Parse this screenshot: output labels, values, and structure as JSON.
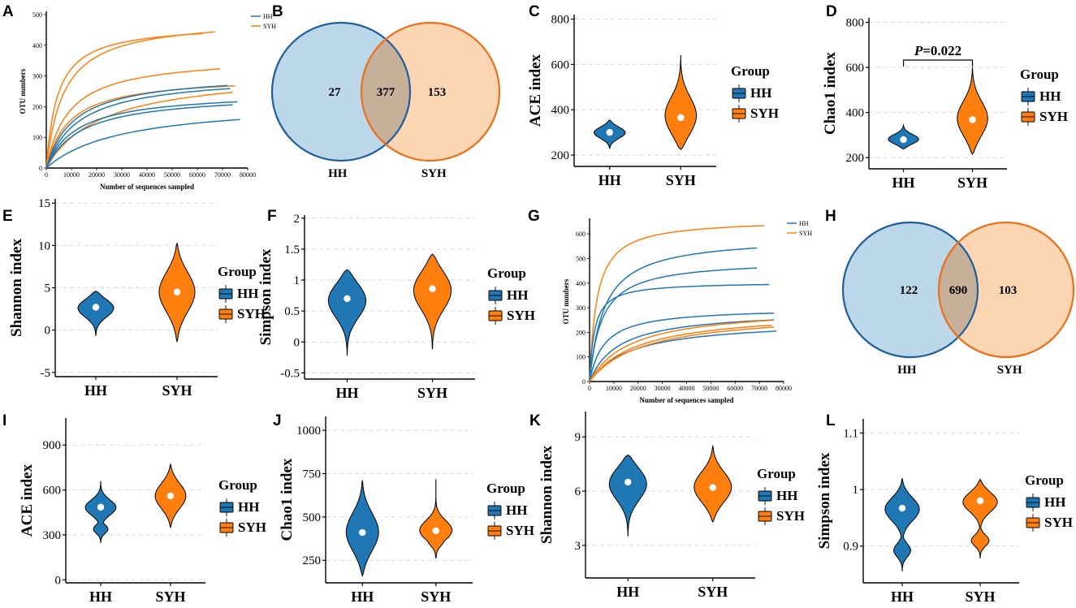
{
  "colors": {
    "HH": "#1f77b4",
    "SYH": "#ff7f0e",
    "venn_HH_fill": "#bcd6ea",
    "venn_SYH_fill": "#fcd5b2",
    "venn_overlap": "#c6b09a",
    "venn_HH_stroke": "#1f5f99",
    "venn_SYH_stroke": "#ec7018"
  },
  "chart_data": [
    {
      "panel": "A",
      "type": "line",
      "xlabel": "Number of sequences sampled",
      "ylabel": "OTU numbers",
      "xlim": [
        0,
        80000
      ],
      "ylim": [
        0,
        500
      ],
      "xticks": [
        "0",
        "10000",
        "20000",
        "30000",
        "40000",
        "50000",
        "60000",
        "70000",
        "80000"
      ],
      "yticks": [
        "0",
        "100",
        "200",
        "300",
        "400",
        "500"
      ],
      "legend": [
        "HH",
        "SYH"
      ],
      "series": [
        {
          "group": "SYH",
          "asym": 470,
          "k": 4500,
          "xmax": 62000
        },
        {
          "group": "SYH",
          "asym": 490,
          "k": 7000,
          "xmax": 67000
        },
        {
          "group": "SYH",
          "asym": 365,
          "k": 9000,
          "xmax": 69000
        },
        {
          "group": "SYH",
          "asym": 300,
          "k": 9000,
          "xmax": 75000
        },
        {
          "group": "SYH",
          "asym": 320,
          "k": 22000,
          "xmax": 74000
        },
        {
          "group": "HH",
          "asym": 310,
          "k": 11000,
          "xmax": 72000
        },
        {
          "group": "HH",
          "asym": 305,
          "k": 13000,
          "xmax": 73000
        },
        {
          "group": "HH",
          "asym": 250,
          "k": 12000,
          "xmax": 76000
        },
        {
          "group": "HH",
          "asym": 245,
          "k": 14000,
          "xmax": 74000
        },
        {
          "group": "HH",
          "asym": 220,
          "k": 30000,
          "xmax": 77000
        }
      ]
    },
    {
      "panel": "B",
      "type": "venn",
      "sets": [
        "HH",
        "SYH"
      ],
      "only_HH": "27",
      "shared": "377",
      "only_SYH": "153"
    },
    {
      "panel": "C",
      "type": "violin",
      "ylabel": "ACE index",
      "ylim": [
        150,
        820
      ],
      "yticks": [
        200,
        400,
        600,
        800
      ],
      "categories": [
        "HH",
        "SYH"
      ],
      "series": [
        {
          "name": "HH",
          "median": 300,
          "min": 230,
          "max": 355
        },
        {
          "name": "SYH",
          "median": 365,
          "min": 225,
          "max": 640
        }
      ],
      "legend_title": "Group",
      "legend": [
        "HH",
        "SYH"
      ]
    },
    {
      "panel": "D",
      "type": "violin",
      "ylabel": "Chao1 index",
      "ylim": [
        150,
        820
      ],
      "yticks": [
        200,
        400,
        600,
        800
      ],
      "categories": [
        "HH",
        "SYH"
      ],
      "series": [
        {
          "name": "HH",
          "median": 280,
          "min": 238,
          "max": 345
        },
        {
          "name": "SYH",
          "median": 368,
          "min": 215,
          "max": 600
        }
      ],
      "annotation": "P=0.022",
      "legend_title": "Group",
      "legend": [
        "HH",
        "SYH"
      ]
    },
    {
      "panel": "E",
      "type": "violin",
      "ylabel": "Shannon index",
      "ylim": [
        -5.5,
        15.5
      ],
      "yticks": [
        -5,
        0,
        5,
        10,
        15
      ],
      "categories": [
        "HH",
        "SYH"
      ],
      "series": [
        {
          "name": "HH",
          "median": 2.7,
          "min": -0.7,
          "max": 4.6
        },
        {
          "name": "SYH",
          "median": 4.5,
          "min": -1.4,
          "max": 10.3
        }
      ],
      "legend_title": "Group",
      "legend": [
        "HH",
        "SYH"
      ]
    },
    {
      "panel": "F",
      "type": "violin",
      "ylabel": "Simpson index",
      "ylim": [
        -0.6,
        2.05
      ],
      "yticks": [
        -0.5,
        0,
        0.5,
        1,
        1.5,
        2
      ],
      "categories": [
        "HH",
        "SYH"
      ],
      "series": [
        {
          "name": "HH",
          "median": 0.7,
          "min": -0.22,
          "max": 1.17
        },
        {
          "name": "SYH",
          "median": 0.86,
          "min": -0.12,
          "max": 1.42
        }
      ],
      "legend_title": "Group",
      "legend": [
        "HH",
        "SYH"
      ]
    },
    {
      "panel": "G",
      "type": "line",
      "xlabel": "Number of sequences sampled",
      "ylabel": "OTU numbers",
      "xlim": [
        0,
        80000
      ],
      "ylim": [
        0,
        650
      ],
      "xticks": [
        "0",
        "10000",
        "20000",
        "30000",
        "40000",
        "50000",
        "60000",
        "70000",
        "80000"
      ],
      "yticks": [
        "0",
        "100",
        "200",
        "300",
        "400",
        "500",
        "600"
      ],
      "legend": [
        "HH",
        "SYH"
      ],
      "series": [
        {
          "group": "SYH",
          "asym": 660,
          "k": 3000,
          "xmax": 72000
        },
        {
          "group": "HH",
          "asym": 590,
          "k": 6000,
          "xmax": 69000
        },
        {
          "group": "HH",
          "asym": 495,
          "k": 5000,
          "xmax": 69000
        },
        {
          "group": "HH",
          "asym": 405,
          "k": 2000,
          "xmax": 74000
        },
        {
          "group": "HH",
          "asym": 300,
          "k": 6000,
          "xmax": 76000
        },
        {
          "group": "HH",
          "asym": 290,
          "k": 12000,
          "xmax": 76000
        },
        {
          "group": "HH",
          "asym": 250,
          "k": 17000,
          "xmax": 77000
        },
        {
          "group": "SYH",
          "asym": 305,
          "k": 17000,
          "xmax": 75000
        },
        {
          "group": "SYH",
          "asym": 290,
          "k": 20000,
          "xmax": 75000
        },
        {
          "group": "SYH",
          "asym": 285,
          "k": 22000,
          "xmax": 76000
        }
      ]
    },
    {
      "panel": "H",
      "type": "venn",
      "sets": [
        "HH",
        "SYH"
      ],
      "only_HH": "122",
      "shared": "690",
      "only_SYH": "103"
    },
    {
      "panel": "I",
      "type": "violin",
      "ylabel": "ACE index",
      "ylim": [
        -20,
        1080
      ],
      "yticks": [
        0,
        300,
        600,
        900
      ],
      "categories": [
        "HH",
        "SYH"
      ],
      "series": [
        {
          "name": "HH",
          "median": 485,
          "min": 245,
          "max": 660,
          "bimodal": true
        },
        {
          "name": "SYH",
          "median": 560,
          "min": 350,
          "max": 770
        }
      ],
      "legend_title": "Group",
      "legend": [
        "HH",
        "SYH"
      ]
    },
    {
      "panel": "J",
      "type": "violin",
      "ylabel": "Chao1 index",
      "ylim": [
        120,
        1080
      ],
      "yticks": [
        250,
        500,
        750,
        1000
      ],
      "categories": [
        "HH",
        "SYH"
      ],
      "series": [
        {
          "name": "HH",
          "median": 410,
          "min": 160,
          "max": 710
        },
        {
          "name": "SYH",
          "median": 420,
          "min": 260,
          "max": 715,
          "bimodal": true
        }
      ],
      "legend_title": "Group",
      "legend": [
        "HH",
        "SYH"
      ]
    },
    {
      "panel": "K",
      "type": "violin",
      "ylabel": "Shannon index",
      "ylim": [
        1.2,
        10.4
      ],
      "yticks": [
        3,
        6,
        9
      ],
      "categories": [
        "HH",
        "SYH"
      ],
      "series": [
        {
          "name": "HH",
          "median": 6.5,
          "min": 3.5,
          "max": 8.0
        },
        {
          "name": "SYH",
          "median": 6.2,
          "min": 4.3,
          "max": 8.5
        }
      ],
      "legend_title": "Group",
      "legend": [
        "HH",
        "SYH"
      ]
    },
    {
      "panel": "L",
      "type": "violin",
      "ylabel": "Simpson index",
      "ylim": [
        0.835,
        1.125
      ],
      "yticks": [
        0.9,
        1,
        1.1
      ],
      "categories": [
        "HH",
        "SYH"
      ],
      "series": [
        {
          "name": "HH",
          "median": 0.967,
          "min": 0.855,
          "max": 1.02,
          "bimodal": true
        },
        {
          "name": "SYH",
          "median": 0.98,
          "min": 0.878,
          "max": 1.018,
          "bimodal": true
        }
      ],
      "legend_title": "Group",
      "legend": [
        "HH",
        "SYH"
      ]
    }
  ]
}
